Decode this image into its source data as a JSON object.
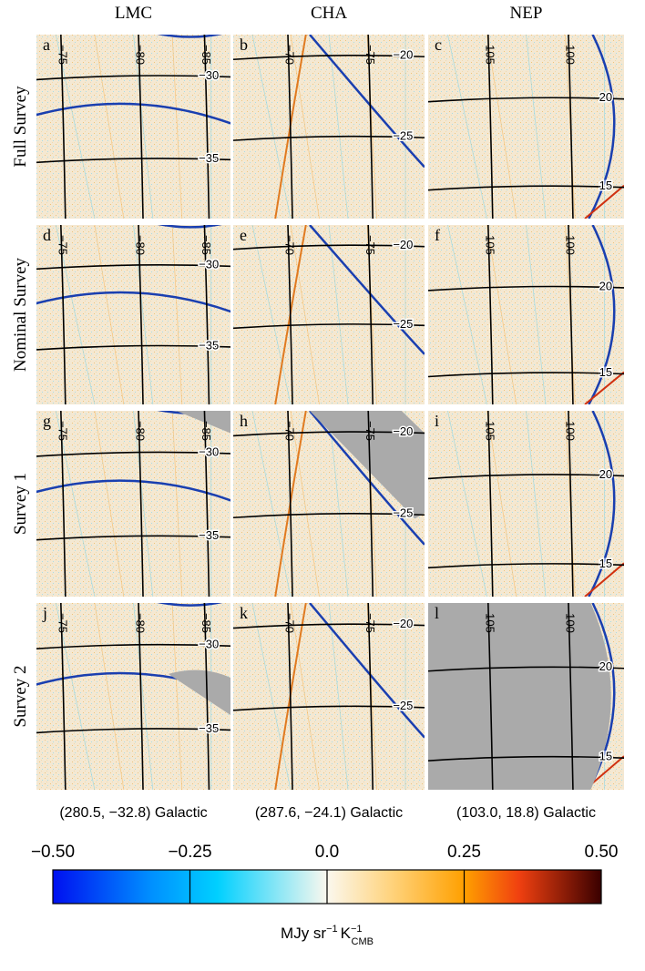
{
  "columns": [
    {
      "title": "LMC",
      "meridians": [
        "−75",
        "−80",
        "−85"
      ],
      "parallels": [
        "−30",
        "−35"
      ],
      "caption": "(280.5, −32.8) Galactic"
    },
    {
      "title": "CHA",
      "meridians": [
        "−70",
        "−75"
      ],
      "parallels": [
        "−20",
        "−25"
      ],
      "caption": "(287.6, −24.1) Galactic"
    },
    {
      "title": "NEP",
      "meridians": [
        "105",
        "100"
      ],
      "parallels": [
        "20",
        "15"
      ],
      "caption": "(103.0, 18.8) Galactic"
    }
  ],
  "rows": [
    {
      "title": "Full Survey",
      "panels": [
        "a",
        "b",
        "c"
      ]
    },
    {
      "title": "Nominal Survey",
      "panels": [
        "d",
        "e",
        "f"
      ]
    },
    {
      "title": "Survey 1",
      "panels": [
        "g",
        "h",
        "i"
      ]
    },
    {
      "title": "Survey 2",
      "panels": [
        "j",
        "k",
        "l"
      ]
    }
  ],
  "colorbar": {
    "lim": [
      -0.5,
      0.5
    ],
    "ticks": [
      {
        "value": -0.5,
        "label": "−0.50"
      },
      {
        "value": -0.25,
        "label": "−0.25"
      },
      {
        "value": 0,
        "label": "0.0"
      },
      {
        "value": 0.25,
        "label": "0.25"
      },
      {
        "value": 0.5,
        "label": "0.50"
      }
    ],
    "label": {
      "unit": "MJy sr",
      "exp1": "−1",
      "k": "K",
      "sub": "CMB",
      "exp2": "−1"
    }
  }
}
